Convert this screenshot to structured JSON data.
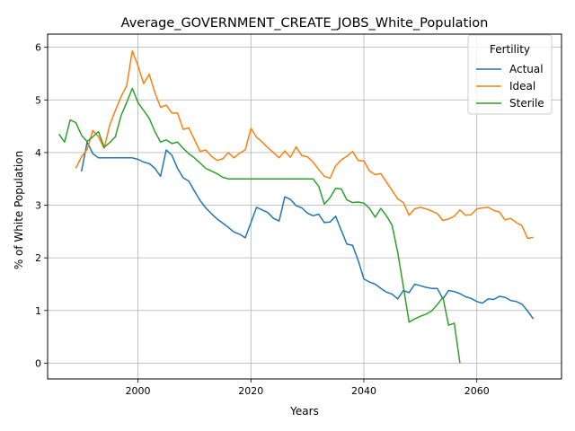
{
  "chart_data": {
    "type": "line",
    "title": "Average_GOVERNMENT_CREATE_JOBS_White_Population",
    "xlabel": "Years",
    "ylabel": "% of White Population",
    "xlim": [
      1984,
      2075
    ],
    "ylim": [
      -0.3,
      6.25
    ],
    "xticks": [
      2000,
      2020,
      2040,
      2060
    ],
    "yticks": [
      0,
      1,
      2,
      3,
      4,
      5,
      6
    ],
    "grid": true,
    "legend": {
      "title": "Fertility",
      "placement": "top-right"
    },
    "series": [
      {
        "name": "Actual",
        "color": "#1f77b4",
        "points": [
          [
            1990,
            3.64
          ],
          [
            1991,
            4.2
          ],
          [
            1992,
            3.98
          ],
          [
            1993,
            3.9
          ],
          [
            1994,
            3.9
          ],
          [
            1995,
            3.9
          ],
          [
            1996,
            3.9
          ],
          [
            1997,
            3.9
          ],
          [
            1998,
            3.9
          ],
          [
            1999,
            3.9
          ],
          [
            2000,
            3.87
          ],
          [
            2001,
            3.82
          ],
          [
            2002,
            3.79
          ],
          [
            2003,
            3.7
          ],
          [
            2004,
            3.55
          ],
          [
            2005,
            4.05
          ],
          [
            2006,
            3.95
          ],
          [
            2007,
            3.7
          ],
          [
            2008,
            3.52
          ],
          [
            2009,
            3.46
          ],
          [
            2010,
            3.27
          ],
          [
            2011,
            3.09
          ],
          [
            2012,
            2.95
          ],
          [
            2013,
            2.84
          ],
          [
            2014,
            2.74
          ],
          [
            2015,
            2.66
          ],
          [
            2016,
            2.58
          ],
          [
            2017,
            2.49
          ],
          [
            2018,
            2.45
          ],
          [
            2019,
            2.38
          ],
          [
            2020,
            2.67
          ],
          [
            2021,
            2.96
          ],
          [
            2022,
            2.91
          ],
          [
            2023,
            2.86
          ],
          [
            2024,
            2.75
          ],
          [
            2025,
            2.7
          ],
          [
            2026,
            3.16
          ],
          [
            2027,
            3.11
          ],
          [
            2028,
            2.99
          ],
          [
            2029,
            2.95
          ],
          [
            2030,
            2.85
          ],
          [
            2031,
            2.8
          ],
          [
            2032,
            2.83
          ],
          [
            2033,
            2.67
          ],
          [
            2034,
            2.68
          ],
          [
            2035,
            2.79
          ],
          [
            2036,
            2.52
          ],
          [
            2037,
            2.26
          ],
          [
            2038,
            2.24
          ],
          [
            2039,
            1.95
          ],
          [
            2040,
            1.6
          ],
          [
            2041,
            1.54
          ],
          [
            2042,
            1.5
          ],
          [
            2043,
            1.42
          ],
          [
            2044,
            1.35
          ],
          [
            2045,
            1.31
          ],
          [
            2046,
            1.22
          ],
          [
            2047,
            1.38
          ],
          [
            2048,
            1.34
          ],
          [
            2049,
            1.5
          ],
          [
            2050,
            1.47
          ],
          [
            2051,
            1.44
          ],
          [
            2052,
            1.42
          ],
          [
            2053,
            1.42
          ],
          [
            2054,
            1.22
          ],
          [
            2055,
            1.38
          ],
          [
            2056,
            1.36
          ],
          [
            2057,
            1.32
          ],
          [
            2058,
            1.26
          ],
          [
            2059,
            1.23
          ],
          [
            2060,
            1.17
          ],
          [
            2061,
            1.14
          ],
          [
            2062,
            1.22
          ],
          [
            2063,
            1.21
          ],
          [
            2064,
            1.27
          ],
          [
            2065,
            1.25
          ],
          [
            2066,
            1.19
          ],
          [
            2067,
            1.17
          ],
          [
            2068,
            1.12
          ],
          [
            2069,
            0.99
          ],
          [
            2070,
            0.84
          ]
        ]
      },
      {
        "name": "Ideal",
        "color": "#ff7f0e",
        "points": [
          [
            1989,
            3.7
          ],
          [
            1990,
            3.92
          ],
          [
            1991,
            4.06
          ],
          [
            1992,
            4.42
          ],
          [
            1993,
            4.3
          ],
          [
            1994,
            4.08
          ],
          [
            1995,
            4.52
          ],
          [
            1996,
            4.8
          ],
          [
            1997,
            5.06
          ],
          [
            1998,
            5.27
          ],
          [
            1999,
            5.93
          ],
          [
            2000,
            5.65
          ],
          [
            2001,
            5.31
          ],
          [
            2002,
            5.49
          ],
          [
            2003,
            5.14
          ],
          [
            2004,
            4.86
          ],
          [
            2005,
            4.9
          ],
          [
            2006,
            4.75
          ],
          [
            2007,
            4.75
          ],
          [
            2008,
            4.44
          ],
          [
            2009,
            4.47
          ],
          [
            2010,
            4.25
          ],
          [
            2011,
            4.02
          ],
          [
            2012,
            4.05
          ],
          [
            2013,
            3.93
          ],
          [
            2014,
            3.85
          ],
          [
            2015,
            3.88
          ],
          [
            2016,
            4.0
          ],
          [
            2017,
            3.9
          ],
          [
            2018,
            3.99
          ],
          [
            2019,
            4.05
          ],
          [
            2020,
            4.46
          ],
          [
            2021,
            4.29
          ],
          [
            2022,
            4.2
          ],
          [
            2023,
            4.09
          ],
          [
            2024,
            4.0
          ],
          [
            2025,
            3.9
          ],
          [
            2026,
            4.03
          ],
          [
            2027,
            3.91
          ],
          [
            2028,
            4.11
          ],
          [
            2029,
            3.94
          ],
          [
            2030,
            3.92
          ],
          [
            2031,
            3.82
          ],
          [
            2032,
            3.68
          ],
          [
            2033,
            3.55
          ],
          [
            2034,
            3.51
          ],
          [
            2035,
            3.75
          ],
          [
            2036,
            3.86
          ],
          [
            2037,
            3.93
          ],
          [
            2038,
            4.02
          ],
          [
            2039,
            3.85
          ],
          [
            2040,
            3.84
          ],
          [
            2041,
            3.65
          ],
          [
            2042,
            3.58
          ],
          [
            2043,
            3.6
          ],
          [
            2044,
            3.44
          ],
          [
            2045,
            3.28
          ],
          [
            2046,
            3.12
          ],
          [
            2047,
            3.05
          ],
          [
            2048,
            2.81
          ],
          [
            2049,
            2.93
          ],
          [
            2050,
            2.96
          ],
          [
            2051,
            2.93
          ],
          [
            2052,
            2.89
          ],
          [
            2053,
            2.84
          ],
          [
            2054,
            2.71
          ],
          [
            2055,
            2.74
          ],
          [
            2056,
            2.79
          ],
          [
            2057,
            2.91
          ],
          [
            2058,
            2.81
          ],
          [
            2059,
            2.82
          ],
          [
            2060,
            2.93
          ],
          [
            2061,
            2.95
          ],
          [
            2062,
            2.96
          ],
          [
            2063,
            2.9
          ],
          [
            2064,
            2.87
          ],
          [
            2065,
            2.72
          ],
          [
            2066,
            2.75
          ],
          [
            2067,
            2.67
          ],
          [
            2068,
            2.61
          ],
          [
            2069,
            2.37
          ],
          [
            2070,
            2.39
          ]
        ]
      },
      {
        "name": "Sterile",
        "color": "#2ca02c",
        "points": [
          [
            1986,
            4.35
          ],
          [
            1987,
            4.2
          ],
          [
            1988,
            4.62
          ],
          [
            1989,
            4.57
          ],
          [
            1990,
            4.33
          ],
          [
            1991,
            4.21
          ],
          [
            1992,
            4.3
          ],
          [
            1993,
            4.4
          ],
          [
            1994,
            4.1
          ],
          [
            1995,
            4.19
          ],
          [
            1996,
            4.3
          ],
          [
            1997,
            4.7
          ],
          [
            1998,
            4.95
          ],
          [
            1999,
            5.22
          ],
          [
            2000,
            4.95
          ],
          [
            2001,
            4.8
          ],
          [
            2002,
            4.65
          ],
          [
            2003,
            4.4
          ],
          [
            2004,
            4.2
          ],
          [
            2005,
            4.24
          ],
          [
            2006,
            4.17
          ],
          [
            2007,
            4.2
          ],
          [
            2008,
            4.08
          ],
          [
            2009,
            3.98
          ],
          [
            2010,
            3.9
          ],
          [
            2011,
            3.8
          ],
          [
            2012,
            3.7
          ],
          [
            2013,
            3.65
          ],
          [
            2014,
            3.6
          ],
          [
            2015,
            3.53
          ],
          [
            2016,
            3.5
          ],
          [
            2017,
            3.5
          ],
          [
            2018,
            3.5
          ],
          [
            2019,
            3.5
          ],
          [
            2020,
            3.5
          ],
          [
            2021,
            3.5
          ],
          [
            2022,
            3.5
          ],
          [
            2023,
            3.5
          ],
          [
            2024,
            3.5
          ],
          [
            2025,
            3.5
          ],
          [
            2026,
            3.5
          ],
          [
            2027,
            3.5
          ],
          [
            2028,
            3.5
          ],
          [
            2029,
            3.5
          ],
          [
            2030,
            3.5
          ],
          [
            2031,
            3.5
          ],
          [
            2032,
            3.36
          ],
          [
            2033,
            3.02
          ],
          [
            2034,
            3.14
          ],
          [
            2035,
            3.32
          ],
          [
            2036,
            3.31
          ],
          [
            2037,
            3.1
          ],
          [
            2038,
            3.05
          ],
          [
            2039,
            3.06
          ],
          [
            2040,
            3.04
          ],
          [
            2041,
            2.94
          ],
          [
            2042,
            2.77
          ],
          [
            2043,
            2.94
          ],
          [
            2044,
            2.8
          ],
          [
            2045,
            2.62
          ],
          [
            2046,
            2.1
          ],
          [
            2047,
            1.45
          ],
          [
            2048,
            0.78
          ],
          [
            2049,
            0.84
          ],
          [
            2050,
            0.89
          ],
          [
            2051,
            0.93
          ],
          [
            2052,
            0.99
          ],
          [
            2053,
            1.11
          ],
          [
            2054,
            1.25
          ],
          [
            2055,
            0.72
          ],
          [
            2056,
            0.76
          ],
          [
            2057,
            0.0
          ]
        ]
      }
    ]
  }
}
